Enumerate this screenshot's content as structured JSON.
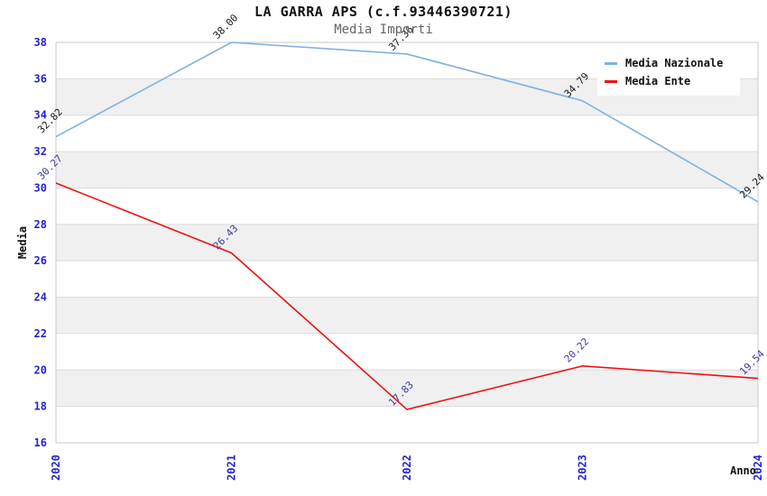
{
  "chart_data": {
    "type": "line",
    "title": "LA GARRA APS (c.f.93446390721)",
    "subtitle": "Media Importi",
    "xlabel": "Anno",
    "ylabel": "Media",
    "x_categories": [
      "2020",
      "2021",
      "2022",
      "2023",
      "2024"
    ],
    "ylim": [
      16,
      38
    ],
    "y_ticks": [
      16,
      18,
      20,
      22,
      24,
      26,
      28,
      30,
      32,
      34,
      36,
      38
    ],
    "grid": "alternating-horizontal-bands",
    "legend_position": "top-right",
    "series": [
      {
        "name": "Media Nazionale",
        "color": "#7db1e3",
        "values": [
          32.82,
          38.0,
          37.36,
          34.79,
          29.24
        ],
        "point_labels": [
          "32.82",
          "38.00",
          "37.36",
          "34.79",
          "29.24"
        ],
        "point_label_color": "#1a1a1a"
      },
      {
        "name": "Media Ente",
        "color": "#ee1111",
        "values": [
          30.27,
          26.43,
          17.83,
          20.22,
          19.54
        ],
        "point_labels": [
          "30.27",
          "26.43",
          "17.83",
          "20.22",
          "19.54"
        ],
        "point_label_color": "#3a3a9e"
      }
    ],
    "colors": {
      "tick_label": "#2323cf",
      "band_fill": "#f0f0f0",
      "grid_line": "#dcdcdc",
      "plot_border": "#c9c9c9",
      "title_text": "#111111",
      "subtitle_text": "#666666"
    }
  }
}
